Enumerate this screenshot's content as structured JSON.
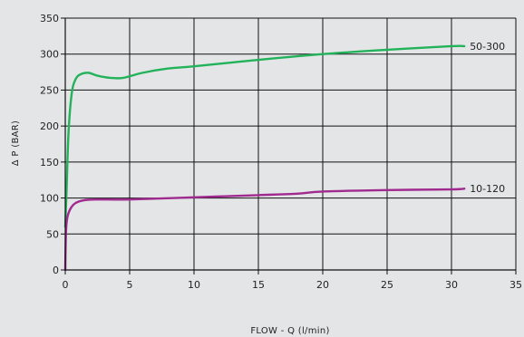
{
  "chart_data": {
    "type": "line",
    "title": "",
    "xlabel": "FLOW - Q (l/min)",
    "ylabel": "Δ  P (BAR)",
    "xlim": [
      0,
      35
    ],
    "ylim": [
      0,
      350
    ],
    "xticks": [
      0,
      5,
      10,
      15,
      20,
      25,
      30,
      35
    ],
    "yticks": [
      0,
      50,
      100,
      150,
      200,
      250,
      300,
      350
    ],
    "grid": true,
    "background": "#e4e5e7",
    "gridColor": "#111111",
    "series": [
      {
        "name": "50-300",
        "color": "#22b35a",
        "x": [
          0,
          0.1,
          0.25,
          0.5,
          0.8,
          1.2,
          1.8,
          2.5,
          3.5,
          4.5,
          6,
          8,
          10,
          15,
          20,
          25,
          30,
          31
        ],
        "y": [
          60,
          110,
          190,
          245,
          265,
          272,
          274,
          270,
          267,
          267,
          274,
          280,
          283,
          292,
          300,
          306,
          311,
          311
        ]
      },
      {
        "name": "10-120",
        "color": "#a02a8f",
        "x": [
          0,
          0.05,
          0.15,
          0.4,
          0.8,
          1.5,
          2.5,
          5,
          10,
          15,
          18,
          20,
          25,
          30,
          31
        ],
        "y": [
          0,
          50,
          72,
          85,
          93,
          97,
          98,
          98,
          101,
          104,
          106,
          109,
          111,
          112,
          113
        ]
      }
    ]
  }
}
